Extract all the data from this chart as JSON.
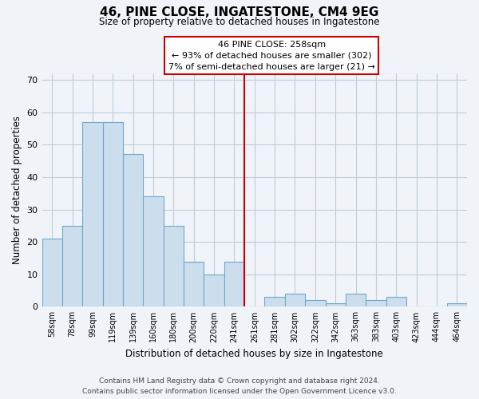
{
  "title": "46, PINE CLOSE, INGATESTONE, CM4 9EG",
  "subtitle": "Size of property relative to detached houses in Ingatestone",
  "xlabel": "Distribution of detached houses by size in Ingatestone",
  "ylabel": "Number of detached properties",
  "bar_labels": [
    "58sqm",
    "78sqm",
    "99sqm",
    "119sqm",
    "139sqm",
    "160sqm",
    "180sqm",
    "200sqm",
    "220sqm",
    "241sqm",
    "261sqm",
    "281sqm",
    "302sqm",
    "322sqm",
    "342sqm",
    "363sqm",
    "383sqm",
    "403sqm",
    "423sqm",
    "444sqm",
    "464sqm"
  ],
  "bar_heights": [
    21,
    25,
    57,
    57,
    47,
    34,
    25,
    14,
    10,
    14,
    0,
    3,
    4,
    2,
    1,
    4,
    2,
    3,
    0,
    0,
    1
  ],
  "bar_color": "#ccdded",
  "bar_edgecolor": "#6fa8c8",
  "vline_color": "#cc0000",
  "ylim": [
    0,
    72
  ],
  "yticks": [
    0,
    10,
    20,
    30,
    40,
    50,
    60,
    70
  ],
  "annotation_title": "46 PINE CLOSE: 258sqm",
  "annotation_line1": "← 93% of detached houses are smaller (302)",
  "annotation_line2": "7% of semi-detached houses are larger (21) →",
  "annotation_box_color": "#ffffff",
  "annotation_box_edgecolor": "#cc0000",
  "footer_line1": "Contains HM Land Registry data © Crown copyright and database right 2024.",
  "footer_line2": "Contains public sector information licensed under the Open Government Licence v3.0.",
  "background_color": "#f0f4f8",
  "grid_color": "#c0ccd8"
}
